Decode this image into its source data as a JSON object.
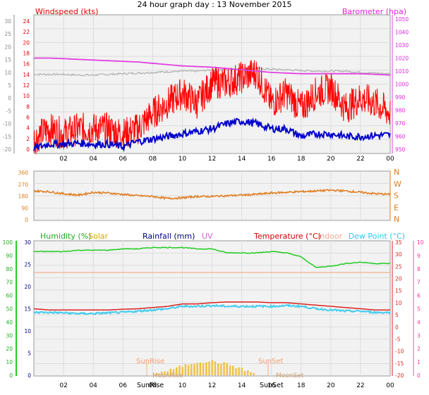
{
  "title": "24 hour graph day : 13 November 2015",
  "x_ticks": [
    "02",
    "04",
    "06",
    "08",
    "10",
    "12",
    "14",
    "16",
    "18",
    "20",
    "22",
    "00"
  ],
  "panel1": {
    "left_label": "Windspeed (kts)",
    "right_label": "Barometer (hpa)",
    "left_outer_ticks": [
      "30",
      "25",
      "20",
      "15",
      "10",
      "5",
      "0",
      "-5",
      "-10",
      "-15",
      "-20"
    ],
    "left_inner_ticks": [
      "24",
      "22",
      "20",
      "18",
      "16",
      "14",
      "12",
      "10",
      "8",
      "6",
      "4",
      "2",
      "0"
    ],
    "right_ticks": [
      "1050",
      "1040",
      "1030",
      "1020",
      "1010",
      "1000",
      "990",
      "980",
      "970",
      "960",
      "950"
    ]
  },
  "panel2": {
    "left_ticks": [
      "360",
      "270",
      "180",
      "90",
      "0"
    ],
    "right_labels": [
      "N",
      "W",
      "S",
      "E",
      "N"
    ]
  },
  "panel3": {
    "labels": {
      "humidity": "Humidity (%)",
      "solar": "Solar",
      "rainfall": "Rainfall (mm)",
      "uv": "UV",
      "temperature": "Temperature (°C)",
      "indoor": "Indoor",
      "dewpoint": "Dew Point (°C)"
    },
    "left_ticks": [
      "100",
      "90",
      "80",
      "70",
      "60",
      "50",
      "40",
      "30",
      "20",
      "10",
      "0"
    ],
    "left_inner_ticks": [
      "30",
      "25",
      "20",
      "15",
      "10",
      "5",
      "0"
    ],
    "right_inner_ticks": [
      "35",
      "30",
      "25",
      "20",
      "15",
      "10",
      "5",
      "0",
      "-5",
      "-10",
      "-15",
      "-20"
    ],
    "right_outer_ticks": [
      "10",
      "9",
      "8",
      "7",
      "6",
      "5",
      "4",
      "3",
      "2",
      "1",
      "0"
    ],
    "annotations": {
      "sunrise": "SunRise",
      "sunset": "SunSet",
      "moonrise": "MoonRise",
      "moonset": "MoonSet",
      "sunrise_axis": "SunRise",
      "sunset_axis": "SunSet"
    }
  },
  "colors": {
    "wind_gust": "#ff0000",
    "wind_avg": "#0000cc",
    "wind_gray": "#b4b4b4",
    "barometer": "#e040e0",
    "direction": "#e07c1e",
    "humidity": "#22cc22",
    "temperature": "#dd2222",
    "indoor": "#f2b090",
    "dewpoint": "#44ccee",
    "solar": "#f0c040"
  },
  "chart_data": [
    {
      "type": "line",
      "panel": "wind-barometer",
      "title": "24 hour graph day : 13 November 2015",
      "ylabel": "Windspeed (kts)",
      "y2label": "Barometer (hpa)",
      "ylim": [
        0,
        25
      ],
      "y2lim": [
        950,
        1050
      ],
      "grid": true,
      "x_hours": [
        0,
        1,
        2,
        3,
        4,
        5,
        6,
        7,
        8,
        9,
        10,
        11,
        12,
        13,
        14,
        15,
        16,
        17,
        18,
        19,
        20,
        21,
        22,
        23,
        24
      ],
      "series": [
        {
          "name": "Windspeed (kts)",
          "values": [
            2,
            4,
            3,
            4,
            4,
            4,
            3,
            4,
            7,
            9,
            11,
            9,
            13,
            13,
            14,
            15,
            9,
            11,
            8,
            11,
            12,
            8,
            10,
            9,
            7
          ]
        },
        {
          "name": "",
          "values": [
            0.2,
            1,
            1,
            1.2,
            1,
            1,
            0.5,
            1.5,
            2,
            2.5,
            3,
            3.5,
            4,
            5,
            5.5,
            5,
            4,
            4,
            2.5,
            3,
            3,
            2.5,
            2.5,
            2.7,
            2.8
          ]
        },
        {
          "name": "Barometer (hpa)",
          "values": [
            1020,
            1020,
            1019.6,
            1019,
            1018.5,
            1018,
            1017.5,
            1017,
            1016,
            1015,
            1014,
            1013.5,
            1013,
            1012,
            1011,
            1010,
            1009,
            1008.5,
            1008,
            1008,
            1008,
            1008,
            1008,
            1007.5,
            1007
          ]
        },
        {
          "name": "",
          "values": [
            1007.5,
            1007.5,
            1007.5,
            1007,
            1007,
            1007.5,
            1008,
            1008.5,
            1009,
            1009.5,
            1010,
            1010,
            1011,
            1011,
            1012,
            1012,
            1011.5,
            1011,
            1010.5,
            1010,
            1010,
            1010,
            1009,
            1008.5,
            1008
          ]
        }
      ]
    },
    {
      "type": "line",
      "panel": "wind-direction",
      "ylim": [
        0,
        360
      ],
      "grid": true,
      "x_hours": [
        0,
        1,
        2,
        3,
        4,
        5,
        6,
        7,
        8,
        9,
        10,
        11,
        12,
        13,
        14,
        15,
        16,
        17,
        18,
        19,
        20,
        21,
        22,
        23,
        24
      ],
      "series": [
        {
          "name": "",
          "values": [
            215,
            210,
            195,
            185,
            205,
            200,
            190,
            180,
            175,
            160,
            165,
            175,
            175,
            180,
            185,
            190,
            200,
            205,
            210,
            215,
            220,
            215,
            205,
            195,
            190
          ]
        }
      ]
    },
    {
      "type": "line",
      "panel": "temp-humidity",
      "ylabel": "Humidity (%)",
      "y2label": "Temperature (°C)",
      "ylim": [
        0,
        100
      ],
      "y2lim": [
        -20,
        35
      ],
      "grid": true,
      "x_hours": [
        0,
        1,
        2,
        3,
        4,
        5,
        6,
        7,
        8,
        9,
        10,
        11,
        12,
        13,
        14,
        15,
        16,
        17,
        18,
        19,
        20,
        21,
        22,
        23,
        24
      ],
      "series": [
        {
          "name": "Humidity (%)",
          "values": [
            93,
            93,
            93,
            94,
            94,
            94,
            95,
            95,
            96,
            96,
            96,
            95,
            95,
            92,
            92,
            92,
            93,
            92,
            89,
            81,
            82,
            84,
            85,
            84,
            84
          ]
        },
        {
          "name": "Temperature (°C)",
          "values": [
            7.5,
            7,
            7,
            7,
            7,
            7,
            7.3,
            7.5,
            8,
            8.5,
            9.5,
            9.5,
            10,
            10.3,
            10.3,
            10.3,
            10,
            10,
            9.5,
            9,
            8.5,
            8,
            7.5,
            7,
            7
          ]
        },
        {
          "name": "Dew Point (°C)",
          "values": [
            6,
            6,
            5.8,
            5.5,
            5.5,
            5.8,
            6,
            6.5,
            7,
            7.5,
            8.5,
            8.5,
            8.8,
            8.5,
            8.5,
            8.5,
            8.5,
            8.8,
            8.5,
            7.5,
            7,
            6.5,
            6.5,
            6,
            6
          ]
        },
        {
          "name": "Indoor",
          "values": [
            22.5,
            22.5,
            22.5,
            22.5,
            22.5,
            22.5,
            22.5,
            22.5,
            22.5,
            22.5,
            22.5,
            22.5,
            22.5,
            22.5,
            22.5,
            22.5,
            22.5,
            22.5,
            22.5,
            22.5,
            22.5,
            22.5,
            22.5,
            22.5,
            22.5
          ]
        },
        {
          "name": "Solar",
          "values": [
            0,
            0,
            0,
            0,
            0,
            0,
            0,
            0,
            0,
            0.3,
            0.8,
            1.2,
            1.3,
            1.0,
            0.5,
            0,
            0,
            0,
            0,
            0,
            0,
            0,
            0,
            0,
            0
          ]
        }
      ]
    }
  ]
}
